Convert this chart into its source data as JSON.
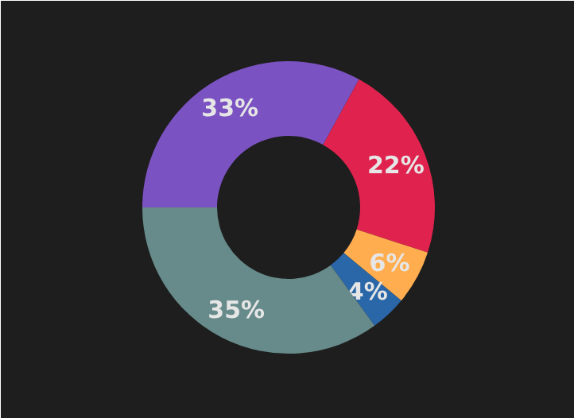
{
  "chart_data": {
    "type": "donut",
    "categories": [
      null,
      null,
      null,
      null,
      null
    ],
    "values": [
      33,
      22,
      6,
      4,
      35
    ],
    "colors": [
      "#7b52c1",
      "#e0234e",
      "#ffad4f",
      "#2a67a8",
      "#678a8a"
    ],
    "value_labels": [
      "33%",
      "22%",
      "6%",
      "4%",
      "35%"
    ]
  }
}
